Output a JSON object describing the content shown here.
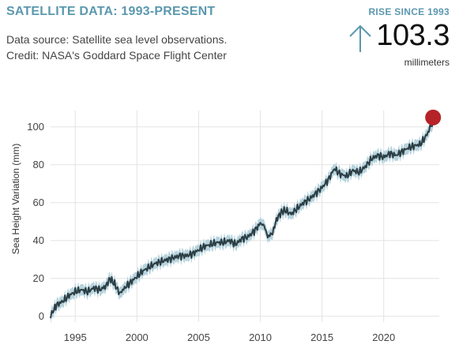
{
  "header": {
    "title": "SATELLITE DATA: 1993-PRESENT",
    "source_line1": "Data source: Satellite sea level observations.",
    "source_line2": "Credit: NASA's Goddard Space Flight Center",
    "rise_label": "RISE SINCE 1993",
    "rise_value": "103.3",
    "rise_unit": "millimeters",
    "arrow_icon": "arrow-up-icon"
  },
  "colors": {
    "accent": "#5b98ae",
    "line": "#2c3e44",
    "band": "#b7d3dd",
    "marker": "#b52328",
    "grid": "#e3e3e3"
  },
  "chart_data": {
    "type": "line",
    "title": "",
    "xlabel": "",
    "ylabel": "Sea Height Variation (mm)",
    "xlim": [
      1993.0,
      2024.5
    ],
    "ylim": [
      -3,
      107
    ],
    "x_ticks": [
      1995,
      2000,
      2005,
      2010,
      2015,
      2020
    ],
    "y_ticks": [
      0,
      20,
      40,
      60,
      80,
      100
    ],
    "grid": true,
    "uncertainty_band_mm": 3,
    "series": [
      {
        "x": [
          1993.0,
          1993.2,
          1993.5,
          1994.0,
          1994.5,
          1995.0,
          1995.5,
          1996.0,
          1996.5,
          1997.0,
          1997.5,
          1997.8,
          1998.2,
          1998.6,
          1999.0,
          1999.5,
          2000.0,
          2000.5,
          2001.0,
          2001.5,
          2002.0,
          2002.5,
          2003.0,
          2003.5,
          2004.0,
          2004.5,
          2005.0,
          2005.5,
          2006.0,
          2006.5,
          2007.0,
          2007.5,
          2008.0,
          2008.5,
          2009.0,
          2009.5,
          2010.0,
          2010.3,
          2010.6,
          2011.0,
          2011.3,
          2011.7,
          2012.0,
          2012.5,
          2013.0,
          2013.5,
          2014.0,
          2014.5,
          2015.0,
          2015.5,
          2016.0,
          2016.5,
          2017.0,
          2017.5,
          2018.0,
          2018.5,
          2019.0,
          2019.5,
          2020.0,
          2020.5,
          2021.0,
          2021.5,
          2022.0,
          2022.5,
          2023.0,
          2023.5,
          2024.0
        ],
        "y": [
          -1,
          3,
          6,
          8,
          11,
          13,
          14,
          13,
          15,
          14,
          16,
          20,
          17,
          12,
          15,
          18,
          21,
          24,
          26,
          28,
          29,
          30,
          31,
          32,
          32,
          33,
          35,
          37,
          38,
          39,
          39,
          40,
          38,
          41,
          42,
          45,
          49,
          48,
          42,
          44,
          51,
          55,
          56,
          54,
          57,
          60,
          62,
          65,
          68,
          72,
          78,
          75,
          74,
          77,
          76,
          79,
          83,
          85,
          84,
          86,
          85,
          87,
          89,
          90,
          91,
          96,
          103
        ]
      }
    ],
    "endpoint": {
      "x": 2024.0,
      "y": 103.3
    }
  }
}
